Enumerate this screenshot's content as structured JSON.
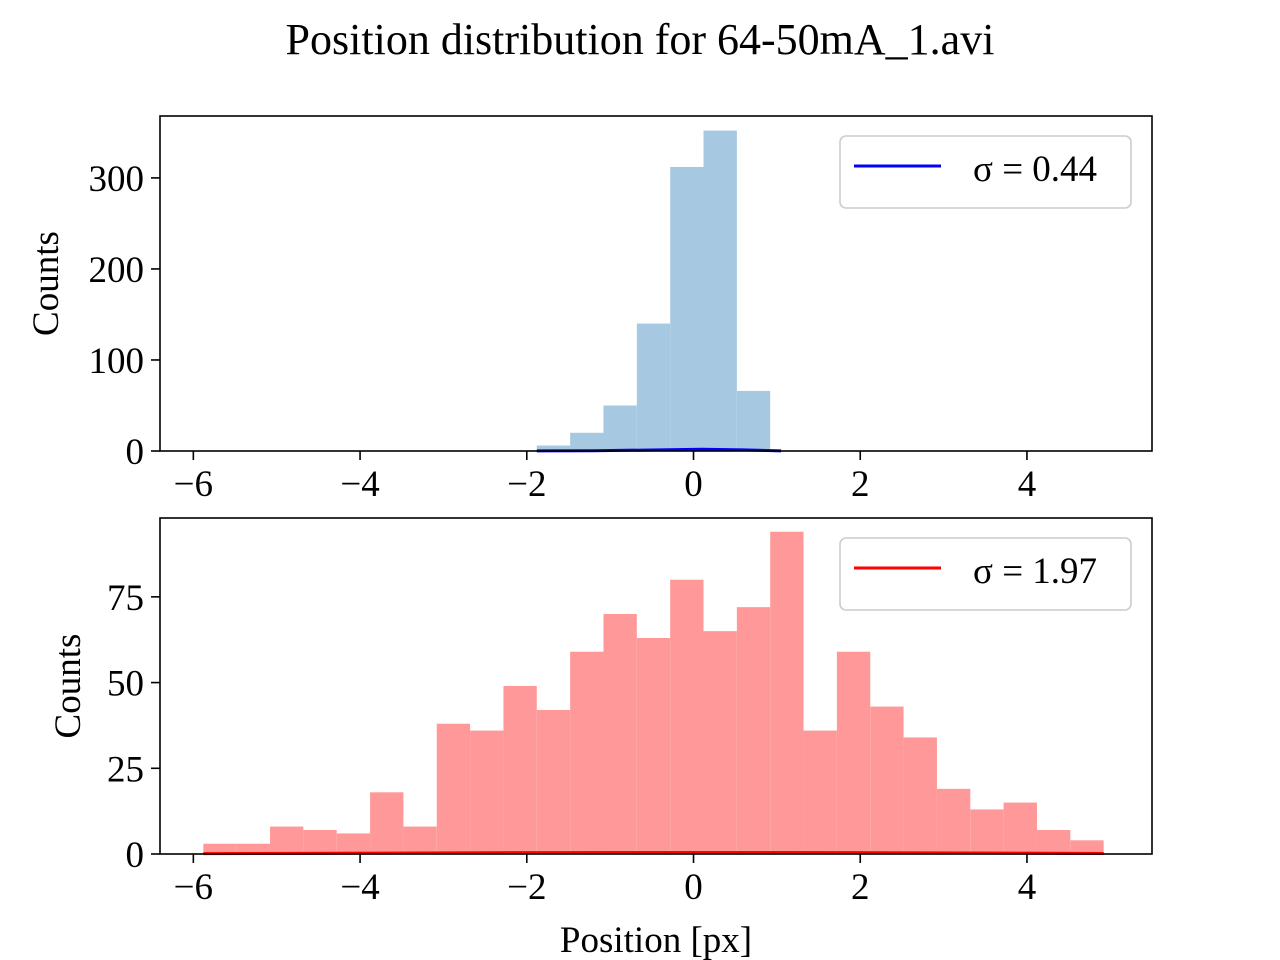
{
  "title": "Position distribution for 64-50mA_1.avi",
  "chart_data": [
    {
      "type": "bar",
      "name": "top-histogram",
      "xlim": [
        -6.4,
        5.5
      ],
      "ylim": [
        0,
        368
      ],
      "xticks": [
        -6,
        -4,
        -2,
        0,
        2,
        4
      ],
      "xtick_labels": [
        "−6",
        "−4",
        "−2",
        "0",
        "2",
        "4"
      ],
      "yticks": [
        0,
        100,
        200,
        300
      ],
      "ytick_labels": [
        "0",
        "100",
        "200",
        "300"
      ],
      "xlabel": "",
      "ylabel": "Counts",
      "bin_edges": [
        -1.88,
        -1.48,
        -1.08,
        -0.68,
        -0.28,
        0.12,
        0.52,
        0.92
      ],
      "counts": [
        6,
        20,
        50,
        140,
        312,
        352,
        66
      ],
      "bar_color": "#a6c8e0",
      "fit_line": {
        "color": "#0000ff",
        "x": [
          -1.88,
          -1.2,
          -0.6,
          0.0,
          0.1,
          0.6,
          1.05
        ],
        "y": [
          0.1,
          0.3,
          1.0,
          1.8,
          1.9,
          1.2,
          0.2
        ]
      },
      "legend": {
        "placement": "top-right",
        "label": "σ = 0.44",
        "line_color": "#0000ff"
      }
    },
    {
      "type": "bar",
      "name": "bottom-histogram",
      "xlim": [
        -6.4,
        5.5
      ],
      "ylim": [
        0,
        98
      ],
      "xticks": [
        -6,
        -4,
        -2,
        0,
        2,
        4
      ],
      "xtick_labels": [
        "−6",
        "−4",
        "−2",
        "0",
        "2",
        "4"
      ],
      "yticks": [
        0,
        25,
        50,
        75
      ],
      "ytick_labels": [
        "0",
        "25",
        "50",
        "75"
      ],
      "xlabel": "Position [px]",
      "ylabel": "Counts",
      "bin_edges": [
        -5.88,
        -5.48,
        -5.08,
        -4.68,
        -4.28,
        -3.88,
        -3.48,
        -3.08,
        -2.68,
        -2.28,
        -1.88,
        -1.48,
        -1.08,
        -0.68,
        -0.28,
        0.12,
        0.52,
        0.92,
        1.32,
        1.72,
        2.12,
        2.52,
        2.92,
        3.32,
        3.72,
        4.12,
        4.52,
        4.92
      ],
      "counts": [
        3,
        3,
        8,
        7,
        6,
        18,
        8,
        38,
        36,
        49,
        42,
        59,
        70,
        63,
        80,
        65,
        72,
        94,
        36,
        59,
        43,
        34,
        19,
        13,
        15,
        7,
        4
      ],
      "bar_color": "#ff9999",
      "fit_line": {
        "color": "#ff0000",
        "x": [
          -5.88,
          -4,
          -2,
          0,
          2,
          4,
          4.92
        ],
        "y": [
          0.1,
          0.25,
          0.4,
          0.45,
          0.4,
          0.25,
          0.15
        ]
      },
      "legend": {
        "placement": "top-right",
        "label": "σ = 1.97",
        "line_color": "#ff0000"
      }
    }
  ]
}
